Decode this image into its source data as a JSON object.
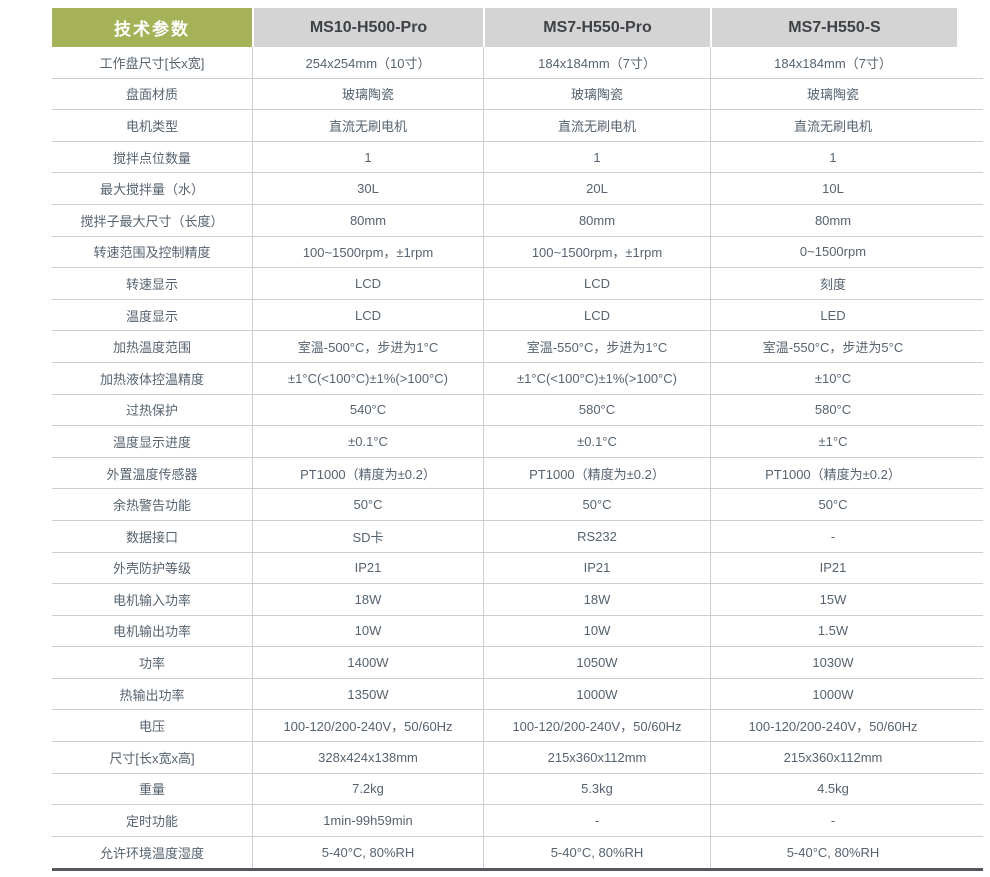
{
  "table": {
    "header": {
      "param_label": "技术参数",
      "products": [
        "MS10-H500-Pro",
        "MS7-H550-Pro",
        "MS7-H550-S"
      ]
    },
    "rows": [
      {
        "label": "工作盘尺寸[长x宽]",
        "values": [
          "254x254mm（10寸）",
          "184x184mm（7寸）",
          "184x184mm（7寸）"
        ]
      },
      {
        "label": "盘面材质",
        "values": [
          "玻璃陶瓷",
          "玻璃陶瓷",
          "玻璃陶瓷"
        ]
      },
      {
        "label": "电机类型",
        "values": [
          "直流无刷电机",
          "直流无刷电机",
          "直流无刷电机"
        ]
      },
      {
        "label": "搅拌点位数量",
        "values": [
          "1",
          "1",
          "1"
        ]
      },
      {
        "label": "最大搅拌量（水）",
        "values": [
          "30L",
          "20L",
          "10L"
        ]
      },
      {
        "label": "搅拌子最大尺寸（长度）",
        "values": [
          "80mm",
          "80mm",
          "80mm"
        ]
      },
      {
        "label": "转速范围及控制精度",
        "values": [
          "100~1500rpm，±1rpm",
          "100~1500rpm，±1rpm",
          "0~1500rpm"
        ]
      },
      {
        "label": "转速显示",
        "values": [
          "LCD",
          "LCD",
          "刻度"
        ]
      },
      {
        "label": "温度显示",
        "values": [
          "LCD",
          "LCD",
          "LED"
        ]
      },
      {
        "label": "加热温度范围",
        "values": [
          "室温-500°C，步进为1°C",
          "室温-550°C，步进为1°C",
          "室温-550°C，步进为5°C"
        ]
      },
      {
        "label": "加热液体控温精度",
        "values": [
          "±1°C(<100°C)±1%(>100°C)",
          "±1°C(<100°C)±1%(>100°C)",
          "±10°C"
        ]
      },
      {
        "label": "过热保护",
        "values": [
          "540°C",
          "580°C",
          "580°C"
        ]
      },
      {
        "label": "温度显示进度",
        "values": [
          "±0.1°C",
          "±0.1°C",
          "±1°C"
        ]
      },
      {
        "label": "外置温度传感器",
        "values": [
          "PT1000（精度为±0.2）",
          "PT1000（精度为±0.2）",
          "PT1000（精度为±0.2）"
        ]
      },
      {
        "label": "余热警告功能",
        "values": [
          "50°C",
          "50°C",
          "50°C"
        ]
      },
      {
        "label": "数据接口",
        "values": [
          "SD卡",
          "RS232",
          "-"
        ]
      },
      {
        "label": "外壳防护等级",
        "values": [
          "IP21",
          "IP21",
          "IP21"
        ]
      },
      {
        "label": "电机输入功率",
        "values": [
          "18W",
          "18W",
          "15W"
        ]
      },
      {
        "label": "电机输出功率",
        "values": [
          "10W",
          "10W",
          "1.5W"
        ]
      },
      {
        "label": "功率",
        "values": [
          "1400W",
          "1050W",
          "1030W"
        ]
      },
      {
        "label": "热输出功率",
        "values": [
          "1350W",
          "1000W",
          "1000W"
        ]
      },
      {
        "label": "电压",
        "values": [
          "100-120/200-240V，50/60Hz",
          "100-120/200-240V，50/60Hz",
          "100-120/200-240V，50/60Hz"
        ]
      },
      {
        "label": "尺寸[长x宽x高]",
        "values": [
          "328x424x138mm",
          "215x360x112mm",
          "215x360x112mm"
        ]
      },
      {
        "label": "重量",
        "values": [
          "7.2kg",
          "5.3kg",
          "4.5kg"
        ]
      },
      {
        "label": "定时功能",
        "values": [
          "1min-99h59min",
          "-",
          "-"
        ]
      },
      {
        "label": "允许环境温度湿度",
        "values": [
          "5-40°C, 80%RH",
          "5-40°C, 80%RH",
          "5-40°C, 80%RH"
        ]
      }
    ]
  },
  "colors": {
    "accent_green": "#a5b257",
    "header_gray": "#d4d4d4",
    "header_text": "#3e4247",
    "body_text": "#57636f",
    "grid_line": "#cdd0d2",
    "bottom_rule": "#54575c"
  }
}
